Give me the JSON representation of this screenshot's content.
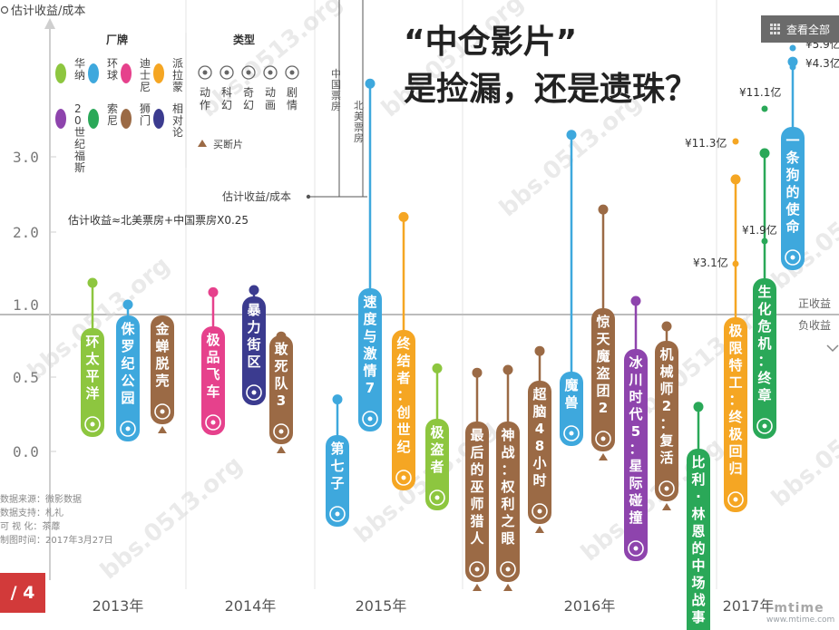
{
  "page": {
    "view_all_label": "查看全部",
    "page_indicator": "/ 4",
    "logo_text": "mtime",
    "logo_subtext": "www.mtime.com"
  },
  "chart_data": {
    "type": "lollipop",
    "title": "“中仓影片”是捡漏，还是遗珠？",
    "ylabel": "估计收益/成本",
    "yticks": [
      0.0,
      0.5,
      1.0,
      2.0,
      3.0
    ],
    "formula": "估计收益≈北美票房+中国票房X0.25",
    "annotation_labels": {
      "china_box": "中国票房",
      "na_box": "北美票房",
      "ratio": "估计收益/成本"
    },
    "zone_labels": {
      "positive": "正收益",
      "negative": "负收益"
    },
    "years": [
      "2013年",
      "2014年",
      "2015年",
      "2016年",
      "2017年"
    ],
    "legend": {
      "studio_title": "厂牌",
      "studios": [
        {
          "name": "华纳",
          "color": "#8dc63f"
        },
        {
          "name": "环球",
          "color": "#3ea8dd"
        },
        {
          "name": "迪士尼",
          "color": "#e6418c"
        },
        {
          "name": "派拉蒙",
          "color": "#f5a623"
        },
        {
          "name": "20世纪福斯",
          "color": "#8e44ad"
        },
        {
          "name": "索尼",
          "color": "#2aa858"
        },
        {
          "name": "狮门",
          "color": "#9b6a45"
        },
        {
          "name": "相对论",
          "color": "#3b3b8f"
        }
      ],
      "genre_title": "类型",
      "genres": [
        {
          "name": "动作",
          "icon": "action-icon"
        },
        {
          "name": "科幻",
          "icon": "scifi-icon"
        },
        {
          "name": "奇幻",
          "icon": "fantasy-icon"
        },
        {
          "name": "动画",
          "icon": "animation-icon"
        },
        {
          "name": "剧情",
          "icon": "drama-icon"
        }
      ],
      "buyout_label": "买断片"
    },
    "extra_labels": [
      "¥5.9亿",
      "¥4.3亿",
      "¥11.1亿",
      "¥11.3亿",
      "¥1.9亿",
      "¥3.1亿"
    ],
    "series": [
      {
        "name": "环太平洋",
        "year": "2013",
        "studio": "华纳",
        "value": 1.3,
        "color": "#8dc63f"
      },
      {
        "name": "侏罗纪公园",
        "year": "2013",
        "studio": "环球",
        "value": 1.0,
        "color": "#3ea8dd"
      },
      {
        "name": "金蝉脱壳",
        "year": "2013",
        "studio": "狮门",
        "value": 0.78,
        "color": "#9b6a45"
      },
      {
        "name": "极品飞车",
        "year": "2014",
        "studio": "迪士尼",
        "value": 1.17,
        "color": "#e6418c"
      },
      {
        "name": "暴力街区",
        "year": "2014",
        "studio": "相对论",
        "value": 1.2,
        "color": "#3b3b8f"
      },
      {
        "name": "敢死队3",
        "year": "2014",
        "studio": "狮门",
        "value": 0.78,
        "color": "#9b6a45"
      },
      {
        "name": "第七子",
        "year": "2015",
        "studio": "环球",
        "value": 0.35,
        "color": "#3ea8dd"
      },
      {
        "name": "速度与激情7",
        "year": "2015",
        "studio": "环球",
        "value": 4.0,
        "color": "#3ea8dd"
      },
      {
        "name": "终结者：创世纪",
        "year": "2015",
        "studio": "派拉蒙",
        "value": 2.2,
        "color": "#f5a623"
      },
      {
        "name": "极盗者",
        "year": "2015",
        "studio": "华纳",
        "value": 0.56,
        "color": "#8dc63f"
      },
      {
        "name": "最后的巫师猎人",
        "year": "2016",
        "studio": "狮门",
        "value": 0.53,
        "color": "#9b6a45"
      },
      {
        "name": "神战：权利之眼",
        "year": "2016",
        "studio": "狮门",
        "value": 0.55,
        "color": "#9b6a45"
      },
      {
        "name": "超脑48小时",
        "year": "2016",
        "studio": "狮门",
        "value": 0.68,
        "color": "#9b6a45"
      },
      {
        "name": "魔兽",
        "year": "2016",
        "studio": "环球",
        "value": 3.3,
        "color": "#3ea8dd"
      },
      {
        "name": "惊天魔盗团2",
        "year": "2016",
        "studio": "狮门",
        "value": 2.3,
        "color": "#9b6a45"
      },
      {
        "name": "冰川时代5：星际碰撞",
        "year": "2016",
        "studio": "20世纪福斯",
        "value": 1.05,
        "color": "#8e44ad"
      },
      {
        "name": "机械师2：复活",
        "year": "2016",
        "studio": "狮门",
        "value": 0.85,
        "color": "#9b6a45"
      },
      {
        "name": "比利·林恩的中场战事",
        "year": "2016",
        "studio": "索尼",
        "value": 0.3,
        "color": "#2aa858"
      },
      {
        "name": "极限特工：终极回归",
        "year": "2017",
        "studio": "派拉蒙",
        "value": 2.7,
        "color": "#f5a623"
      },
      {
        "name": "生化危机：终章",
        "year": "2017",
        "studio": "索尼",
        "value": 3.05,
        "color": "#2aa858"
      },
      {
        "name": "一条狗的使命",
        "year": "2017",
        "studio": "环球",
        "value": 4.3,
        "color": "#3ea8dd"
      }
    ],
    "source_notes": [
      "数据来源：微影数据",
      "数据支持：札礼",
      "可 视 化：茶蘼",
      "制图时间：2017年3月27日"
    ],
    "watermark": "bbs.0513.org"
  }
}
